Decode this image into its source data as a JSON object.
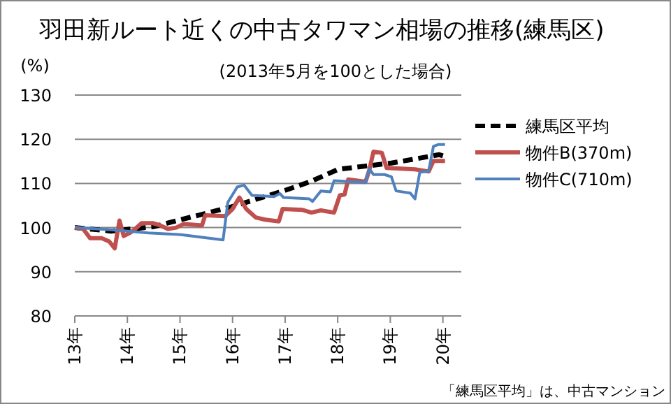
{
  "chart_data": {
    "type": "line",
    "title": "羽田新ルート近くの中古タワマン相場の推移(練馬区)",
    "subtitle": "(2013年5月を100とした場合)",
    "ylabel": "(%)",
    "annotations": [
      "「練馬区平均」は、中古マンション"
    ],
    "xlim": [
      13,
      20.35
    ],
    "xticks": [
      {
        "value": 13,
        "label": "13年"
      },
      {
        "value": 14,
        "label": "14年"
      },
      {
        "value": 15,
        "label": "15年"
      },
      {
        "value": 16,
        "label": "16年"
      },
      {
        "value": 17,
        "label": "17年"
      },
      {
        "value": 18,
        "label": "18年"
      },
      {
        "value": 19,
        "label": "19年"
      },
      {
        "value": 20,
        "label": "20年"
      }
    ],
    "ylim": [
      80,
      130
    ],
    "yticks": [
      80,
      90,
      100,
      110,
      120,
      130
    ],
    "grid": "y",
    "legend": "right",
    "marker": "none",
    "series": [
      {
        "name": "練馬区平均",
        "color": "#000000",
        "line_style": "dashed",
        "x": [
          13.0,
          13.69,
          14.5,
          15.02,
          15.98,
          16.97,
          17.5,
          18.01,
          19.02,
          19.5,
          19.93,
          20.04
        ],
        "values": [
          100,
          99.2,
          100.2,
          101.8,
          104.7,
          108.3,
          110.5,
          113.2,
          114.6,
          115.6,
          116.5,
          116.1
        ]
      },
      {
        "name": "物件B(370m)",
        "color": "#c0504d",
        "line_style": "solid",
        "x": [
          13.0,
          13.16,
          13.29,
          13.51,
          13.65,
          13.76,
          13.85,
          13.93,
          14.05,
          14.13,
          14.27,
          14.49,
          14.62,
          14.77,
          14.93,
          15.07,
          15.42,
          15.48,
          15.86,
          16.0,
          16.13,
          16.26,
          16.44,
          16.62,
          16.88,
          16.95,
          17.33,
          17.5,
          17.68,
          17.93,
          18.04,
          18.13,
          18.2,
          18.53,
          18.6,
          18.68,
          18.84,
          18.93,
          19.47,
          19.73,
          19.82,
          20.04
        ],
        "values": [
          100,
          99.7,
          97.6,
          97.6,
          96.9,
          95.3,
          101.6,
          98.1,
          98.8,
          99.5,
          101,
          101,
          100.5,
          99.7,
          100,
          100.8,
          100.5,
          102.8,
          102.6,
          104.2,
          106.8,
          104.2,
          102.3,
          101.8,
          101.4,
          104.2,
          104,
          103.4,
          103.9,
          103.4,
          107.3,
          107.5,
          110.9,
          110.4,
          113,
          117.2,
          116.9,
          113.5,
          113.2,
          112.7,
          115.1,
          115.1
        ]
      },
      {
        "name": "物件C(710m)",
        "color": "#4f81bd",
        "line_style": "solid",
        "x": [
          13.0,
          13.69,
          14.4,
          15.02,
          15.82,
          15.91,
          16.09,
          16.22,
          16.37,
          16.79,
          16.9,
          16.97,
          17.46,
          17.52,
          17.68,
          17.86,
          17.93,
          18.53,
          18.6,
          18.68,
          18.89,
          19.02,
          19.11,
          19.38,
          19.47,
          19.56,
          19.73,
          19.82,
          19.91,
          20.04
        ],
        "values": [
          100,
          99.5,
          98.8,
          98.4,
          97.2,
          105.7,
          109.2,
          109.6,
          107.3,
          107,
          107.7,
          106.8,
          106.5,
          105.9,
          108.3,
          108.1,
          110.6,
          110.2,
          113.3,
          112,
          112,
          111.5,
          108.3,
          107.8,
          106.5,
          112.5,
          112.8,
          118.4,
          118.8,
          118.8
        ]
      }
    ]
  }
}
